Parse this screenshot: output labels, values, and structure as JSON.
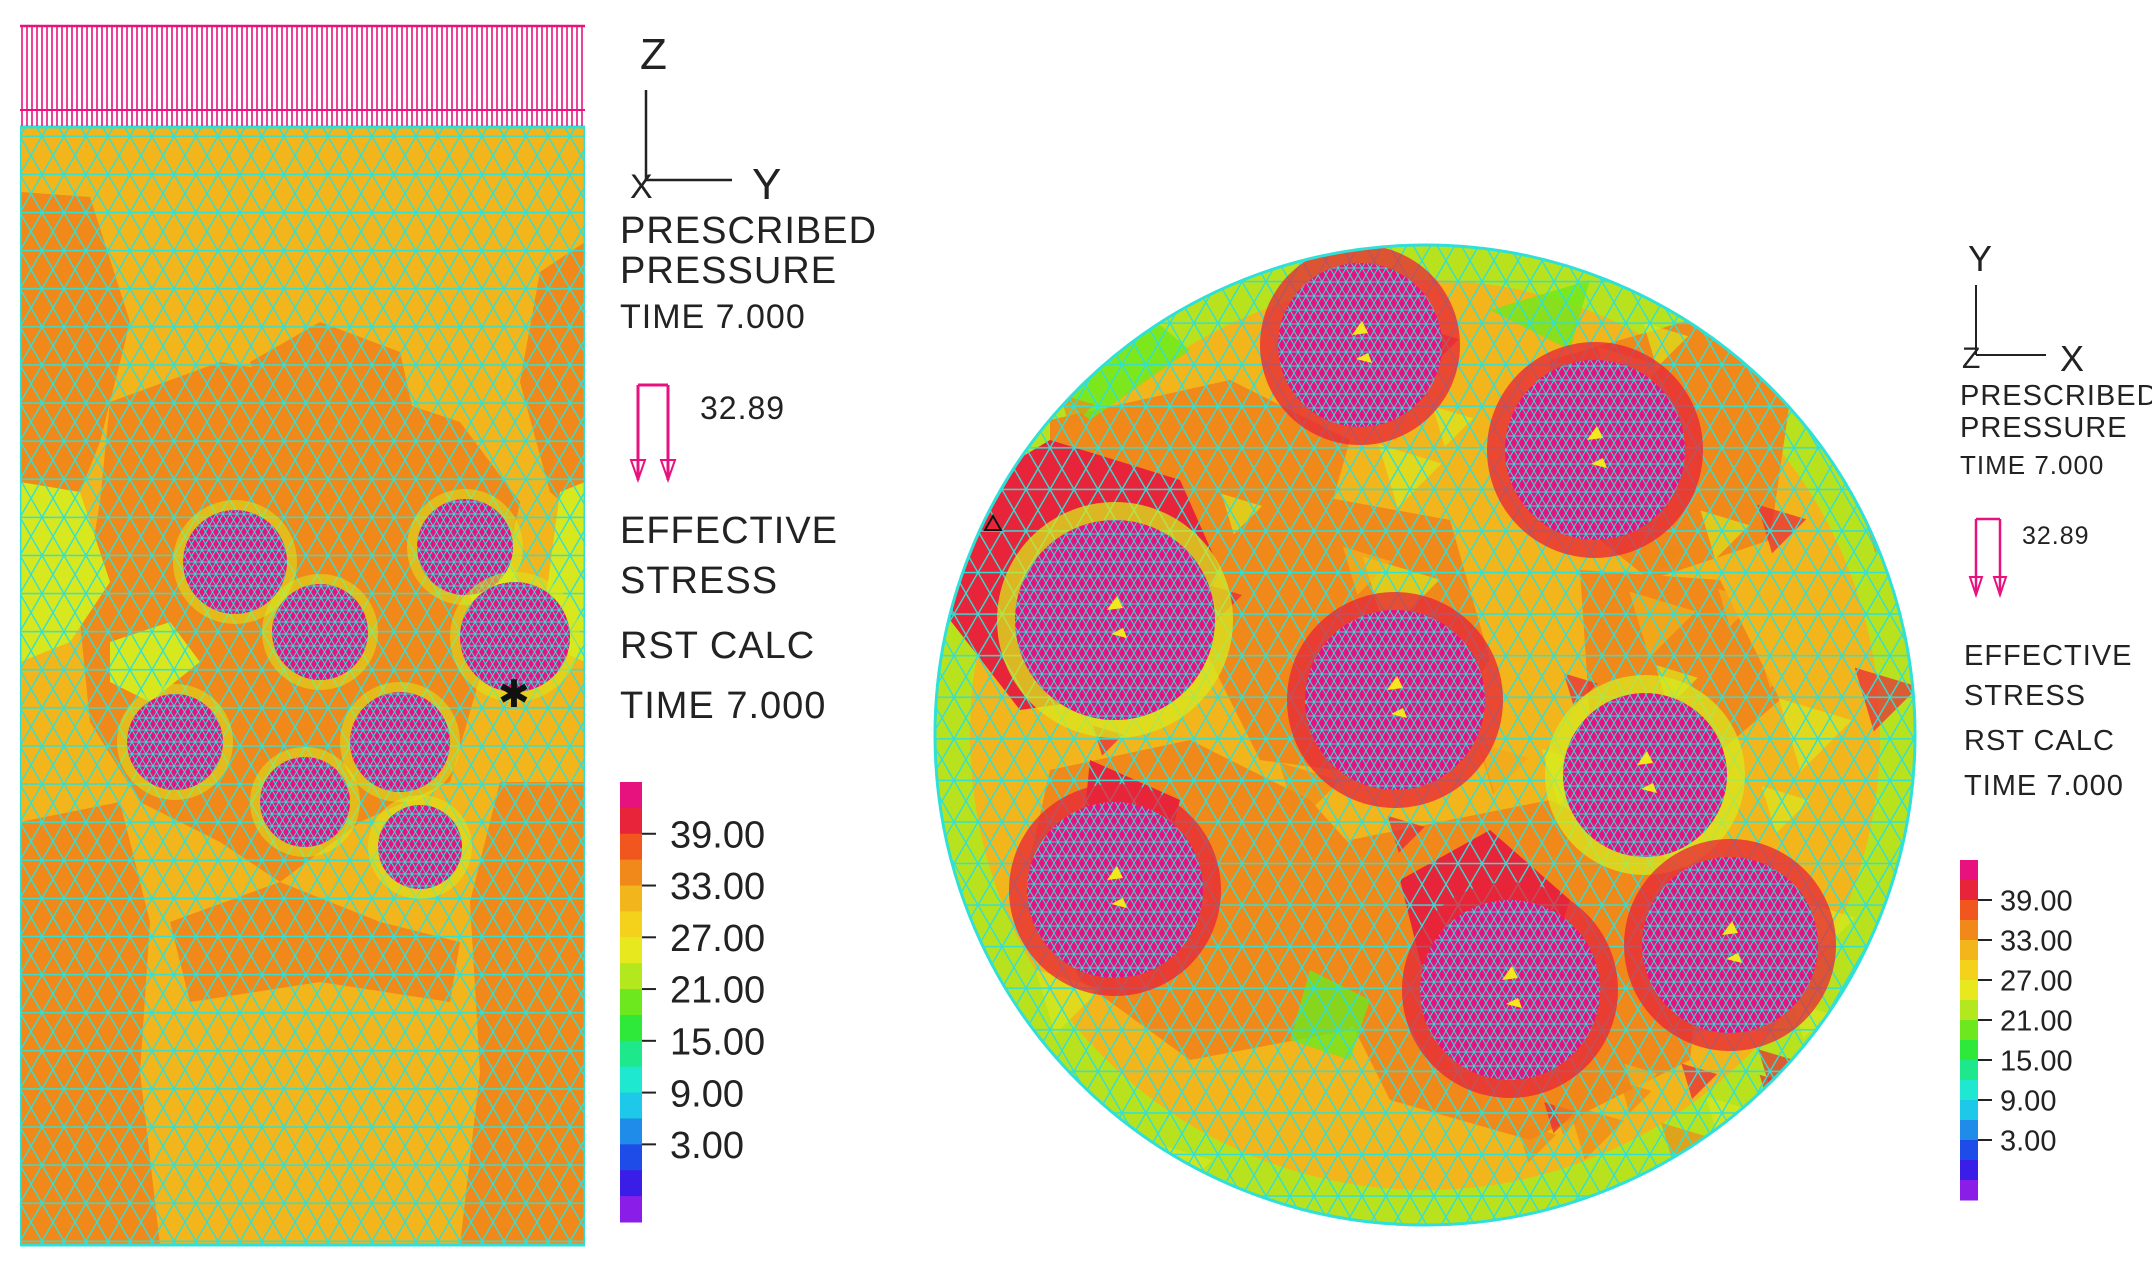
{
  "left_view": {
    "axes": {
      "vertical": "Z",
      "horizontal": "Y",
      "origin": "X"
    },
    "load_title_1": "PRESCRIBED",
    "load_title_2": "PRESSURE",
    "load_time": "TIME 7.000",
    "pressure_value": "32.89",
    "result_title_1": "EFFECTIVE",
    "result_title_2": "STRESS",
    "result_calc": "RST CALC",
    "result_time": "TIME 7.000"
  },
  "right_view": {
    "axes": {
      "vertical": "Y",
      "horizontal": "X",
      "origin": "Z"
    },
    "load_title_1": "PRESCRIBED",
    "load_title_2": "PRESSURE",
    "load_time": "TIME 7.000",
    "pressure_value": "32.89",
    "result_title_1": "EFFECTIVE",
    "result_title_2": "STRESS",
    "result_calc": "RST CALC",
    "result_time": "TIME 7.000"
  },
  "color_scale": {
    "labels": [
      "39.00",
      "33.00",
      "27.00",
      "21.00",
      "15.00",
      "9.00",
      "3.00"
    ],
    "colors": [
      "#e8127f",
      "#e8243a",
      "#f0561e",
      "#f0881a",
      "#f2b51c",
      "#f4d21c",
      "#e8e81e",
      "#b4e81e",
      "#6ee81e",
      "#2ee83a",
      "#1ee88c",
      "#1ee8d0",
      "#1ec8e8",
      "#1e8ce8",
      "#1e4ce8",
      "#3a1ee8",
      "#8a1ee8"
    ]
  },
  "colors": {
    "mesh_line": "#2ee0d8",
    "pressure_arrow": "#e8127f",
    "stone": "#e8127f",
    "high": "#e8243a",
    "mid_high": "#f0881a",
    "mid": "#f2b51c",
    "low_mid": "#d8e81e",
    "low": "#6ee81e"
  }
}
